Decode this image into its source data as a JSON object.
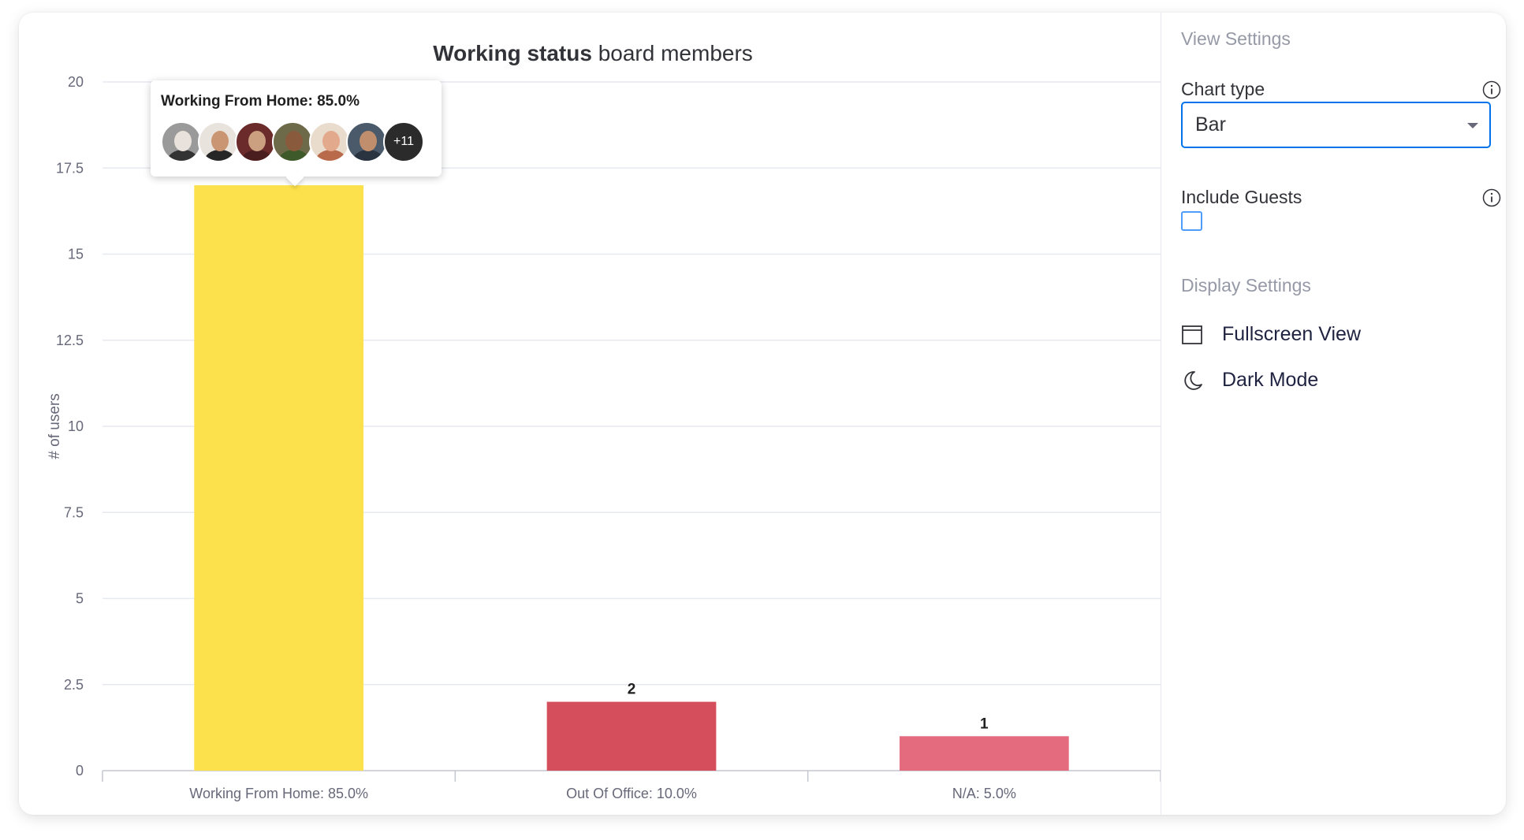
{
  "chart_title": {
    "bold": "Working status",
    "rest": " board members"
  },
  "chart_data": {
    "type": "bar",
    "title": "Working status board members",
    "ylabel": "# of users",
    "xlabel": "",
    "ylim": [
      0,
      20
    ],
    "yticks": [
      0,
      2.5,
      5,
      7.5,
      10,
      12.5,
      15,
      17.5,
      20
    ],
    "ytick_labels": [
      "0",
      "2.5",
      "5",
      "7.5",
      "10",
      "12.5",
      "15",
      "17.5",
      "20"
    ],
    "categories": [
      "Working From Home: 85.0%",
      "Out Of Office: 10.0%",
      "N/A: 5.0%"
    ],
    "values": [
      17,
      2,
      1
    ],
    "data_labels": [
      "",
      "2",
      "1"
    ],
    "colors": [
      "#fde14c",
      "#d44e5b",
      "#e46a7d"
    ],
    "grid": true,
    "legend": "none"
  },
  "tooltip": {
    "title": "Working From Home: 85.0%",
    "more_label": "+11",
    "avatars": [
      {
        "name": "avatar-1",
        "bg": "#9a9a9a",
        "face": "#e9e2dc",
        "body": "#333333"
      },
      {
        "name": "avatar-2",
        "bg": "#e8e4dd",
        "face": "#c99572",
        "body": "#262626"
      },
      {
        "name": "avatar-3",
        "bg": "#6b2b2b",
        "face": "#caa080",
        "body": "#4a1e1e"
      },
      {
        "name": "avatar-4",
        "bg": "#6d6a4a",
        "face": "#8a5a3c",
        "body": "#3e5a2a"
      },
      {
        "name": "avatar-5",
        "bg": "#e9dccd",
        "face": "#e2a98c",
        "body": "#b86a4a"
      },
      {
        "name": "avatar-6",
        "bg": "#4a5a6a",
        "face": "#c08e6c",
        "body": "#2a3440"
      }
    ]
  },
  "settings": {
    "view_settings": "View Settings",
    "chart_type_label": "Chart type",
    "chart_type_value": "Bar",
    "include_guests_label": "Include Guests",
    "include_guests_checked": false,
    "display_settings": "Display Settings",
    "fullscreen_label": "Fullscreen View",
    "dark_mode_label": "Dark Mode"
  },
  "colors": {
    "accent": "#0073ea",
    "grid": "#e6e9ef",
    "muted_text": "#9699a6",
    "tick_text": "#676879"
  }
}
